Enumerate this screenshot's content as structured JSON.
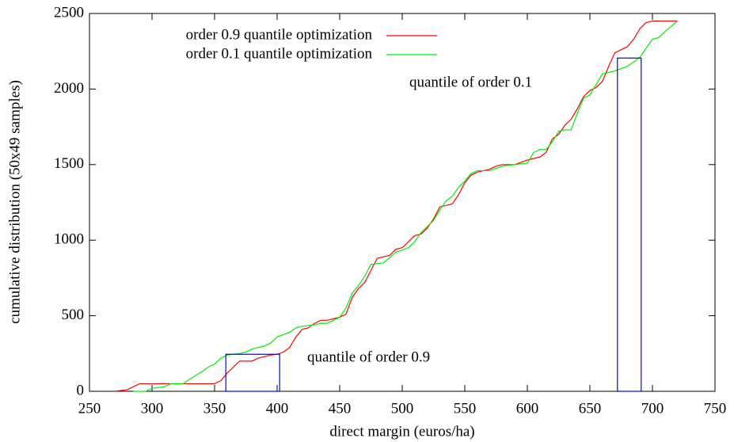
{
  "chart_data": {
    "type": "line",
    "x_label": "direct margin (euros/ha)",
    "y_label": "cumulative distribution (50x49 samples)",
    "xlim": [
      250,
      750
    ],
    "xticks": [
      250,
      300,
      350,
      400,
      450,
      500,
      550,
      600,
      650,
      700,
      750
    ],
    "ylim": [
      0,
      2500
    ],
    "yticks": [
      0,
      500,
      1000,
      1500,
      2000,
      2500
    ],
    "legend": "top-left",
    "series": [
      {
        "name": "order 0.9 quantile optimization",
        "color": "#ff0000",
        "x": [
          270,
          280,
          290,
          350,
          355,
          360,
          365,
          370,
          380,
          385,
          395,
          400,
          405,
          410,
          415,
          420,
          425,
          430,
          435,
          440,
          450,
          455,
          460,
          465,
          470,
          475,
          480,
          490,
          495,
          500,
          505,
          510,
          515,
          520,
          525,
          530,
          540,
          545,
          550,
          555,
          560,
          570,
          575,
          580,
          590,
          600,
          610,
          615,
          620,
          625,
          630,
          635,
          640,
          645,
          650,
          655,
          660,
          665,
          670,
          675,
          680,
          685,
          690,
          695,
          700,
          710,
          720
        ],
        "values": [
          0,
          10,
          50,
          50,
          70,
          120,
          160,
          200,
          200,
          220,
          240,
          245,
          260,
          290,
          360,
          410,
          420,
          450,
          470,
          470,
          490,
          510,
          620,
          680,
          720,
          800,
          880,
          900,
          940,
          950,
          990,
          1030,
          1040,
          1080,
          1140,
          1220,
          1240,
          1300,
          1380,
          1430,
          1450,
          1470,
          1490,
          1500,
          1500,
          1530,
          1550,
          1580,
          1670,
          1700,
          1760,
          1800,
          1870,
          1950,
          1990,
          2010,
          2050,
          2150,
          2240,
          2260,
          2280,
          2330,
          2400,
          2440,
          2450,
          2450,
          2450
        ]
      },
      {
        "name": "order 0.1 quantile optimization",
        "color": "#00ee00",
        "x": [
          285,
          295,
          300,
          310,
          315,
          325,
          330,
          340,
          345,
          350,
          355,
          360,
          370,
          375,
          380,
          385,
          390,
          395,
          400,
          410,
          415,
          420,
          430,
          435,
          440,
          445,
          450,
          455,
          460,
          465,
          470,
          475,
          485,
          495,
          505,
          510,
          515,
          520,
          525,
          530,
          535,
          540,
          545,
          550,
          555,
          560,
          570,
          580,
          590,
          600,
          605,
          610,
          615,
          620,
          625,
          630,
          635,
          640,
          645,
          650,
          655,
          660,
          665,
          670,
          680,
          685,
          690,
          700,
          705,
          710,
          720
        ],
        "values": [
          0,
          0,
          20,
          30,
          50,
          50,
          80,
          130,
          160,
          180,
          220,
          240,
          250,
          260,
          280,
          290,
          300,
          320,
          360,
          390,
          420,
          430,
          440,
          450,
          450,
          470,
          490,
          550,
          650,
          700,
          760,
          840,
          850,
          920,
          950,
          990,
          1050,
          1090,
          1130,
          1200,
          1260,
          1290,
          1350,
          1390,
          1440,
          1460,
          1460,
          1490,
          1500,
          1510,
          1580,
          1600,
          1600,
          1650,
          1720,
          1730,
          1730,
          1840,
          1940,
          1960,
          2030,
          2100,
          2110,
          2120,
          2150,
          2180,
          2210,
          2330,
          2340,
          2380,
          2450
        ]
      }
    ],
    "quantile_boxes": [
      {
        "label": "quantile of order 0.9",
        "color": "#0000ff",
        "x": [
          359,
          402
        ],
        "y": 245
      },
      {
        "label": "quantile of order 0.1",
        "color": "#0000ff",
        "x": [
          672,
          691
        ],
        "y": 2205
      }
    ]
  }
}
